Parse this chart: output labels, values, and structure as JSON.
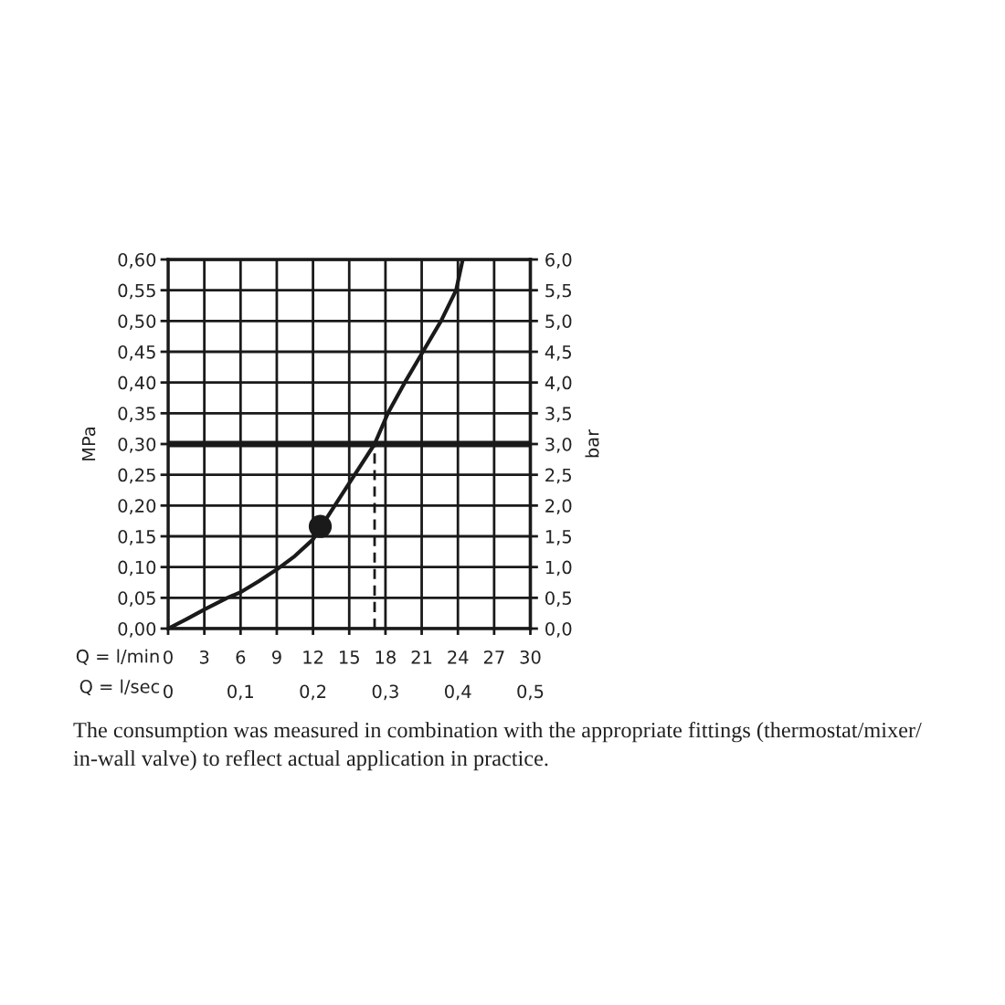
{
  "chart_data": {
    "type": "line",
    "xlabel": "Q = l/min",
    "x2label": "Q = l/sec",
    "ylabel": "MPa",
    "y2label": "bar",
    "xlim": [
      0,
      30
    ],
    "xticks": [
      0,
      3,
      6,
      9,
      12,
      15,
      18,
      21,
      24,
      27,
      30
    ],
    "x2lim": [
      0,
      0.5
    ],
    "x2ticks": [
      0,
      {
        "value": 0.1,
        "label": "0,1"
      },
      {
        "value": 0.2,
        "label": "0,2"
      },
      {
        "value": 0.3,
        "label": "0,3"
      },
      {
        "value": 0.4,
        "label": "0,4"
      },
      {
        "value": 0.5,
        "label": "0,5"
      }
    ],
    "ylim": [
      0,
      0.6
    ],
    "yticks": [
      {
        "value": 0,
        "label": "0,00"
      },
      {
        "value": 0.05,
        "label": "0,05"
      },
      {
        "value": 0.1,
        "label": "0,10"
      },
      {
        "value": 0.15,
        "label": "0,15"
      },
      {
        "value": 0.2,
        "label": "0,20"
      },
      {
        "value": 0.25,
        "label": "0,25"
      },
      {
        "value": 0.3,
        "label": "0,30"
      },
      {
        "value": 0.35,
        "label": "0,35"
      },
      {
        "value": 0.4,
        "label": "0,40"
      },
      {
        "value": 0.45,
        "label": "0,45"
      },
      {
        "value": 0.5,
        "label": "0,50"
      },
      {
        "value": 0.55,
        "label": "0,55"
      },
      {
        "value": 0.6,
        "label": "0,60"
      }
    ],
    "y2lim": [
      0,
      6
    ],
    "y2ticks": [
      {
        "value": 0,
        "label": "0,0"
      },
      {
        "value": 0.5,
        "label": "0,5"
      },
      {
        "value": 1,
        "label": "1,0"
      },
      {
        "value": 1.5,
        "label": "1,5"
      },
      {
        "value": 2,
        "label": "2,0"
      },
      {
        "value": 2.5,
        "label": "2,5"
      },
      {
        "value": 3,
        "label": "3,0"
      },
      {
        "value": 3.5,
        "label": "3,5"
      },
      {
        "value": 4,
        "label": "4,0"
      },
      {
        "value": 4.5,
        "label": "4,5"
      },
      {
        "value": 5,
        "label": "5,0"
      },
      {
        "value": 5.5,
        "label": "5,5"
      },
      {
        "value": 6,
        "label": "6,0"
      }
    ],
    "grid": true,
    "ref_lines": [
      {
        "axis": "y",
        "value": 0.3,
        "color": "#1a1a1a"
      }
    ],
    "series": [
      {
        "color": "#1a1a1a",
        "line_style": "solid",
        "marker": "none",
        "x": [
          0,
          1.5,
          3,
          4.9,
          6,
          7.5,
          9,
          10.5,
          12,
          13.8,
          15.45,
          17.1,
          18.2,
          19.6,
          21.1,
          22.6,
          23.85,
          24.4
        ],
        "values": [
          0,
          0.015,
          0.031,
          0.05,
          0.059,
          0.077,
          0.096,
          0.118,
          0.145,
          0.2,
          0.25,
          0.3,
          0.35,
          0.4,
          0.45,
          0.5,
          0.55,
          0.6
        ]
      },
      {
        "color": "#1a1a1a",
        "line_style": "dashed",
        "marker": "none",
        "x": [
          17.1,
          17.1
        ],
        "values": [
          0,
          0.3
        ]
      },
      {
        "type": "scatter",
        "color": "#1a1a1a",
        "marker": "circle",
        "x": [
          12.6
        ],
        "values": [
          0.166
        ]
      }
    ],
    "annotations": [
      "The consumption was measured in combination with the appropriate fittings (thermostat/mixer/ in-wall valve) to reflect actual application in practice."
    ]
  }
}
